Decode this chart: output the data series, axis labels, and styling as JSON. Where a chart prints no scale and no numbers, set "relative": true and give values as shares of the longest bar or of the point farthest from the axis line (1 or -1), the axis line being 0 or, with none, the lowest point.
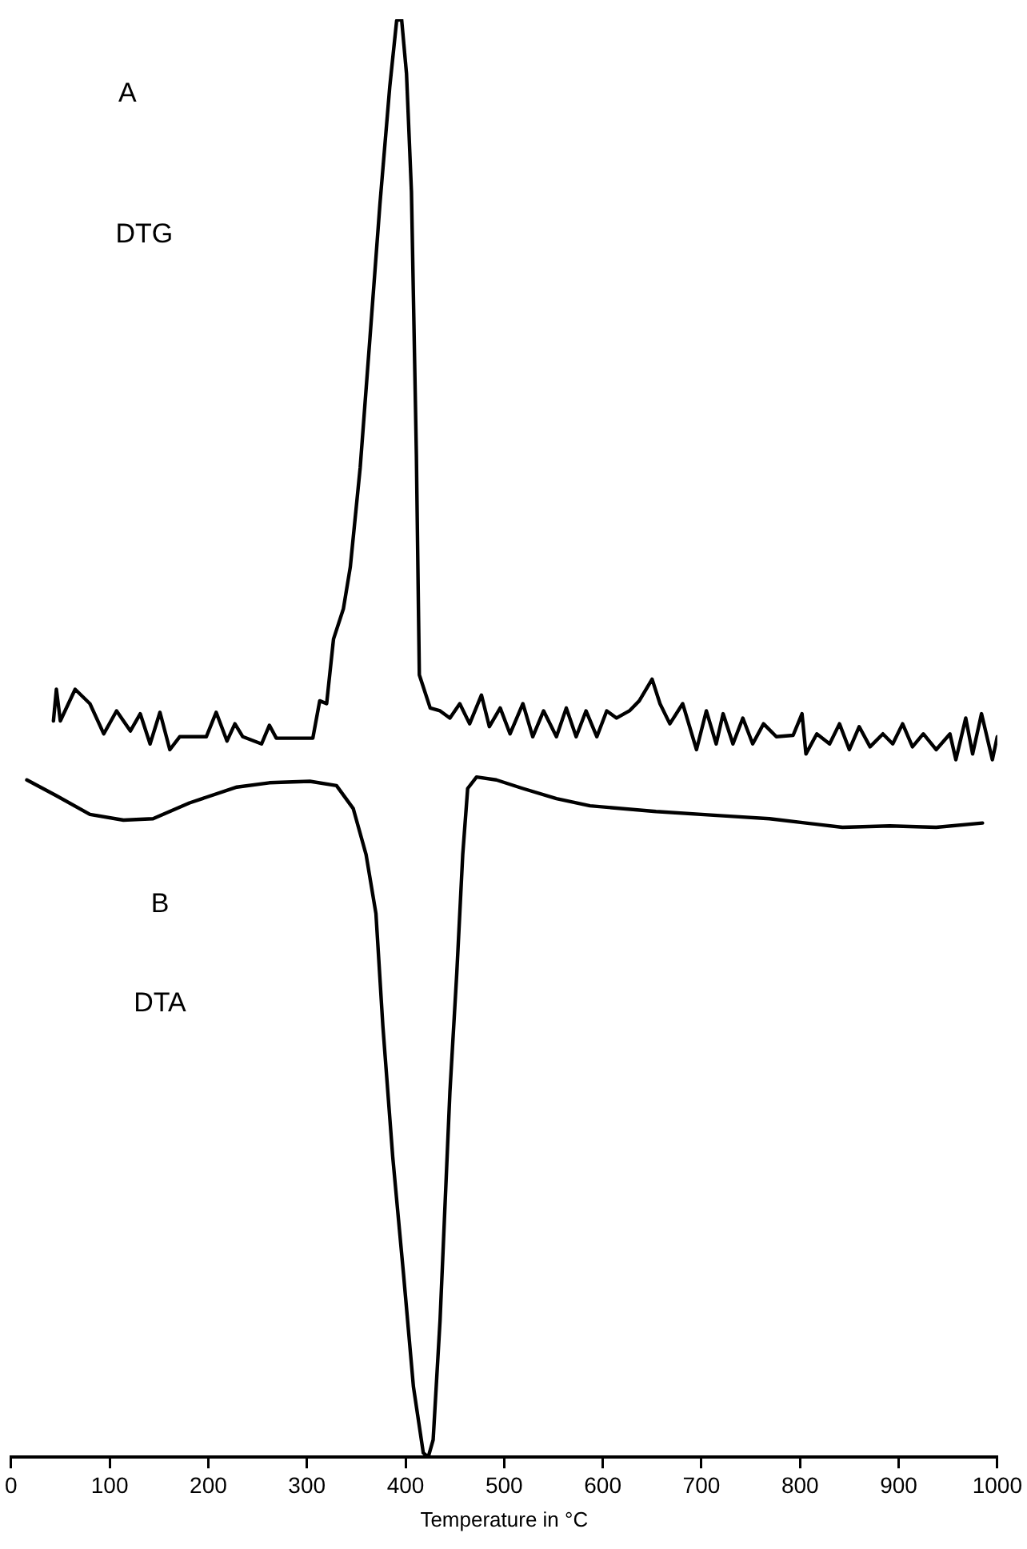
{
  "chart_data": {
    "type": "line",
    "relative": true,
    "xlabel": "Temperature in °C",
    "xlim": [
      0,
      1000
    ],
    "xticks": [
      0,
      100,
      200,
      300,
      400,
      500,
      600,
      700,
      800,
      900,
      1000
    ],
    "tick_labels": "x",
    "grid": false,
    "legend": false,
    "marker": "none",
    "line_style": "solid",
    "annotations": [
      "A",
      "DTG",
      "B",
      "DTA"
    ],
    "series": [
      {
        "color": "#000000",
        "x": [
          43,
          46,
          50,
          65,
          80,
          94,
          107,
          121,
          131,
          141,
          151,
          161,
          171,
          198,
          208,
          219,
          227,
          235,
          254,
          262,
          269,
          306,
          313,
          320,
          327,
          337,
          344,
          354,
          364,
          374,
          384,
          391,
          396,
          401,
          406,
          411,
          414,
          425,
          435,
          445,
          455,
          465,
          477,
          485,
          496,
          506,
          519,
          529,
          540,
          553,
          563,
          573,
          583,
          594,
          604,
          614,
          627,
          637,
          650,
          658,
          668,
          681,
          695,
          705,
          715,
          722,
          732,
          742,
          752,
          763,
          776,
          793,
          802,
          806,
          817,
          830,
          840,
          850,
          860,
          871,
          884,
          894,
          904,
          914,
          925,
          938,
          952,
          958,
          968,
          975,
          984,
          995,
          1000
        ],
        "values": [
          0.512,
          0.534,
          0.512,
          0.534,
          0.524,
          0.503,
          0.519,
          0.505,
          0.517,
          0.496,
          0.518,
          0.492,
          0.501,
          0.501,
          0.518,
          0.498,
          0.51,
          0.501,
          0.496,
          0.509,
          0.5,
          0.5,
          0.526,
          0.524,
          0.569,
          0.59,
          0.619,
          0.688,
          0.779,
          0.871,
          0.953,
          0.999,
          1.0,
          0.962,
          0.88,
          0.697,
          0.544,
          0.521,
          0.519,
          0.514,
          0.524,
          0.51,
          0.53,
          0.508,
          0.521,
          0.503,
          0.524,
          0.501,
          0.519,
          0.501,
          0.521,
          0.501,
          0.519,
          0.501,
          0.519,
          0.514,
          0.519,
          0.526,
          0.541,
          0.524,
          0.51,
          0.524,
          0.492,
          0.519,
          0.496,
          0.517,
          0.496,
          0.514,
          0.496,
          0.51,
          0.501,
          0.502,
          0.517,
          0.489,
          0.503,
          0.496,
          0.51,
          0.492,
          0.508,
          0.494,
          0.503,
          0.496,
          0.51,
          0.494,
          0.503,
          0.492,
          0.503,
          0.485,
          0.514,
          0.489,
          0.517,
          0.485,
          0.501
        ]
      },
      {
        "color": "#000000",
        "x": [
          16,
          46,
          80,
          114,
          144,
          181,
          229,
          262,
          303,
          330,
          347,
          360,
          370,
          377,
          387,
          398,
          408,
          418,
          423,
          428,
          435,
          445,
          452,
          458,
          463,
          472,
          492,
          519,
          553,
          587,
          654,
          722,
          769,
          843,
          891,
          938,
          985
        ],
        "values": [
          0.471,
          0.46,
          0.447,
          0.443,
          0.444,
          0.455,
          0.466,
          0.469,
          0.47,
          0.467,
          0.451,
          0.419,
          0.378,
          0.3,
          0.209,
          0.127,
          0.049,
          0.003,
          0.0,
          0.012,
          0.095,
          0.254,
          0.337,
          0.419,
          0.465,
          0.473,
          0.471,
          0.465,
          0.458,
          0.453,
          0.449,
          0.446,
          0.444,
          0.438,
          0.439,
          0.438,
          0.441
        ]
      }
    ]
  }
}
